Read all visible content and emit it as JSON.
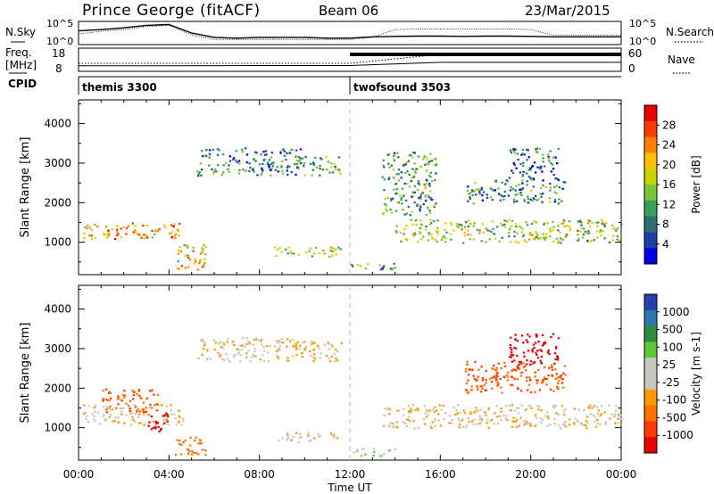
{
  "header": {
    "station": "Prince George (fitACF)",
    "beam": "Beam 06",
    "date": "23/Mar/2015"
  },
  "strip_labels": {
    "nsky": "N.Sky",
    "nsky_top": "10^5",
    "nsky_bottom": "10^0",
    "nsearch": "N.Search",
    "nsearch_top": "10^5",
    "nsearch_bottom": "10^0",
    "freq": "Freq.",
    "freq_unit": "[MHz]",
    "freq_top": "18",
    "freq_bottom": "8",
    "nave": "Nave",
    "nave_top": "60",
    "nave_bottom": "0",
    "cpid": "CPID"
  },
  "cpid_segments": [
    {
      "name": "themis 3300",
      "start_hour": 0
    },
    {
      "name": "twofsound 3503",
      "start_hour": 12
    }
  ],
  "power_colorbar": {
    "label": "Power [dB]",
    "ticks": [
      "28",
      "24",
      "20",
      "16",
      "12",
      "8",
      "4"
    ],
    "colors": [
      "#e60000",
      "#ff3a00",
      "#ff7f00",
      "#ffc000",
      "#c8d400",
      "#7ac43a",
      "#34a05a",
      "#2d6e6e",
      "#1f3fa8",
      "#0000e6"
    ]
  },
  "velocity_colorbar": {
    "label": "Velocity [m s-1]",
    "ticks": [
      "1000",
      "500",
      "100",
      "25",
      "-25",
      "-100",
      "-500",
      "-1000"
    ],
    "colors": [
      "#2540b0",
      "#2a78a8",
      "#2f8a3a",
      "#5ac83a",
      "#c8c8c0",
      "#c8c8c0",
      "#ff9a00",
      "#ff7000",
      "#ff3a00",
      "#e60000"
    ]
  },
  "chart_data": [
    {
      "type": "line",
      "x": [
        0,
        1,
        2,
        3,
        4,
        5,
        6,
        7,
        8,
        9,
        10,
        11,
        12,
        13,
        14,
        15,
        16,
        17,
        18,
        19,
        20,
        21,
        22,
        23,
        24
      ],
      "series": [
        {
          "name": "N.Sky",
          "values": [
            1000,
            2000,
            5000,
            20000,
            30000,
            300,
            30,
            20,
            30,
            30,
            30,
            20,
            20,
            40,
            50,
            60,
            60,
            50,
            60,
            60,
            50,
            40,
            40,
            40,
            40
          ]
        },
        {
          "name": "N.Search",
          "values": [
            200,
            800,
            2000,
            10000,
            20000,
            100,
            10,
            10,
            10,
            10,
            10,
            10,
            10,
            30,
            2000,
            3000,
            3000,
            3000,
            3000,
            3000,
            2000,
            100,
            100,
            100,
            100
          ]
        }
      ],
      "ylim": [
        1,
        100000
      ],
      "log_y": true
    },
    {
      "type": "line",
      "x": [
        0,
        4,
        8,
        12,
        16,
        20,
        24
      ],
      "series": [
        {
          "name": "Freq.",
          "values": [
            10.2,
            10.2,
            10.3,
            10.3,
            11.8,
            11.8,
            11.8
          ]
        },
        {
          "name": "Nave",
          "values": [
            20,
            20,
            20,
            20,
            45,
            45,
            45
          ]
        }
      ],
      "ylim": [
        8,
        18
      ]
    },
    {
      "type": "heatmap",
      "title": "Power",
      "xlabel": "Time UT",
      "ylabel": "Slant Range [km]",
      "xlim": [
        0,
        24
      ],
      "ylim": [
        180,
        4600
      ],
      "x_ticks": [
        "00:00",
        "04:00",
        "08:00",
        "12:00",
        "16:00",
        "20:00",
        "00:00"
      ],
      "y_ticks": [
        "1000",
        "2000",
        "3000",
        "4000"
      ],
      "bands": [
        {
          "x0": 0.2,
          "x1": 4.6,
          "r0": 1100,
          "r1": 1500,
          "value": 22
        },
        {
          "x0": 4.2,
          "x1": 5.6,
          "r0": 300,
          "r1": 950,
          "value": 20
        },
        {
          "x0": 5.2,
          "x1": 9.8,
          "r0": 2700,
          "r1": 3400,
          "value": 10
        },
        {
          "x0": 9.6,
          "x1": 11.6,
          "r0": 2700,
          "r1": 3200,
          "value": 14
        },
        {
          "x0": 8.6,
          "x1": 11.6,
          "r0": 650,
          "r1": 900,
          "value": 18
        },
        {
          "x0": 12.0,
          "x1": 14.0,
          "r0": 300,
          "r1": 500,
          "value": 12
        },
        {
          "x0": 13.4,
          "x1": 15.8,
          "r0": 1700,
          "r1": 3300,
          "value": 12
        },
        {
          "x0": 14.0,
          "x1": 24.0,
          "r0": 1000,
          "r1": 1600,
          "value": 16
        },
        {
          "x0": 17.0,
          "x1": 21.5,
          "r0": 2000,
          "r1": 2600,
          "value": 10
        },
        {
          "x0": 19.0,
          "x1": 21.2,
          "r0": 2600,
          "r1": 3400,
          "value": 8
        }
      ]
    },
    {
      "type": "heatmap",
      "title": "Velocity",
      "xlabel": "Time UT",
      "ylabel": "Slant Range [km]",
      "xlim": [
        0,
        24
      ],
      "ylim": [
        180,
        4600
      ],
      "x_ticks": [
        "00:00",
        "04:00",
        "08:00",
        "12:00",
        "16:00",
        "20:00",
        "00:00"
      ],
      "y_ticks": [
        "1000",
        "2000",
        "3000",
        "4000"
      ],
      "bands": [
        {
          "x0": 0.2,
          "x1": 4.6,
          "r0": 1100,
          "r1": 1600,
          "value": 0
        },
        {
          "x0": 1.0,
          "x1": 3.5,
          "r0": 1400,
          "r1": 2000,
          "value": -300
        },
        {
          "x0": 3.0,
          "x1": 4.0,
          "r0": 900,
          "r1": 1400,
          "value": -800
        },
        {
          "x0": 4.2,
          "x1": 5.6,
          "r0": 300,
          "r1": 800,
          "value": -200
        },
        {
          "x0": 5.2,
          "x1": 11.6,
          "r0": 2700,
          "r1": 3300,
          "value": 0
        },
        {
          "x0": 8.6,
          "x1": 11.6,
          "r0": 650,
          "r1": 900,
          "value": 0
        },
        {
          "x0": 12.0,
          "x1": 14.0,
          "r0": 300,
          "r1": 500,
          "value": 60
        },
        {
          "x0": 13.4,
          "x1": 24.0,
          "r0": 1000,
          "r1": 1600,
          "value": 0
        },
        {
          "x0": 17.0,
          "x1": 21.5,
          "r0": 1900,
          "r1": 2700,
          "value": -300
        },
        {
          "x0": 19.0,
          "x1": 21.2,
          "r0": 2600,
          "r1": 3400,
          "value": -600
        }
      ]
    }
  ]
}
